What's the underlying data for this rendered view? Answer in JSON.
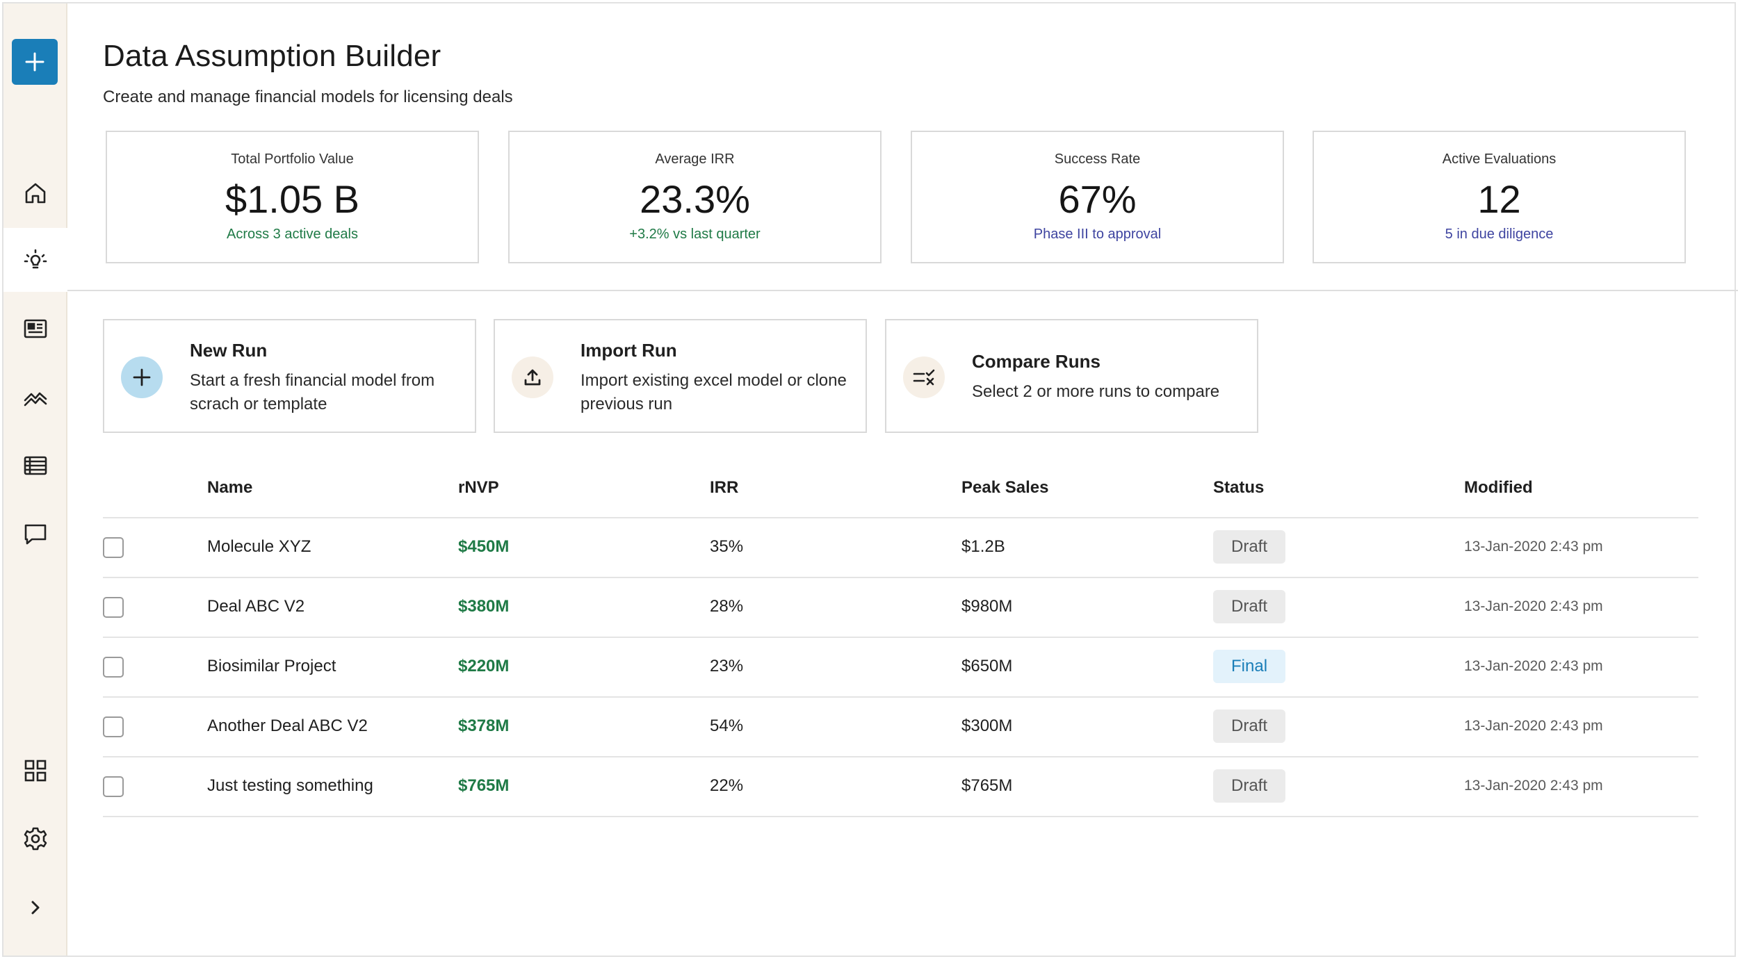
{
  "sidebar": {
    "new_button": "+",
    "nav": [
      {
        "name": "home-icon"
      },
      {
        "name": "lightbulb-icon",
        "active": true
      },
      {
        "name": "newspaper-icon"
      },
      {
        "name": "chart-icon"
      },
      {
        "name": "table-icon"
      },
      {
        "name": "chat-icon"
      }
    ],
    "bottom": [
      {
        "name": "grid-icon"
      },
      {
        "name": "gear-icon"
      },
      {
        "name": "chevron-right-icon"
      }
    ]
  },
  "header": {
    "title": "Data Assumption Builder",
    "subtitle": "Create and manage financial models for licensing deals"
  },
  "kpis": [
    {
      "label": "Total Portfolio Value",
      "value": "$1.05 B",
      "note": "Across 3 active deals",
      "note_color": "#1f7a46"
    },
    {
      "label": "Average IRR",
      "value": "23.3%",
      "note": "+3.2% vs last quarter",
      "note_color": "#1f7a46"
    },
    {
      "label": "Success Rate",
      "value": "67%",
      "note": "Phase III to approval",
      "note_color": "#3e44a0"
    },
    {
      "label": "Active Evaluations",
      "value": "12",
      "note": "5 in due diligence",
      "note_color": "#3e44a0"
    }
  ],
  "actions": [
    {
      "title": "New Run",
      "description": "Start a fresh financial model from scrach or template",
      "icon": "plus-icon"
    },
    {
      "title": "Import Run",
      "description": "Import existing excel model or clone previous run",
      "icon": "upload-icon"
    },
    {
      "title": "Compare Runs",
      "description": "Select 2 or more runs to compare",
      "icon": "compare-icon"
    }
  ],
  "table": {
    "columns": [
      "Name",
      "rNVP",
      "IRR",
      "Peak Sales",
      "Status",
      "Modified"
    ],
    "rows": [
      {
        "name": "Molecule XYZ",
        "rnvp": "$450M",
        "irr": "35%",
        "peak_sales": "$1.2B",
        "status": "Draft",
        "modified": "13-Jan-2020 2:43 pm"
      },
      {
        "name": "Deal ABC V2",
        "rnvp": "$380M",
        "irr": "28%",
        "peak_sales": "$980M",
        "status": "Draft",
        "modified": "13-Jan-2020 2:43 pm"
      },
      {
        "name": "Biosimilar Project",
        "rnvp": "$220M",
        "irr": "23%",
        "peak_sales": "$650M",
        "status": "Final",
        "modified": "13-Jan-2020 2:43 pm"
      },
      {
        "name": "Another Deal ABC V2",
        "rnvp": "$378M",
        "irr": "54%",
        "peak_sales": "$300M",
        "status": "Draft",
        "modified": "13-Jan-2020 2:43 pm"
      },
      {
        "name": "Just testing something",
        "rnvp": "$765M",
        "irr": "22%",
        "peak_sales": "$765M",
        "status": "Draft",
        "modified": "13-Jan-2020 2:43 pm"
      }
    ]
  },
  "colors": {
    "accent": "#1a7eb8",
    "positive": "#1f7a46",
    "info": "#3e44a0",
    "sidebar_bg": "#f8f3ec"
  }
}
